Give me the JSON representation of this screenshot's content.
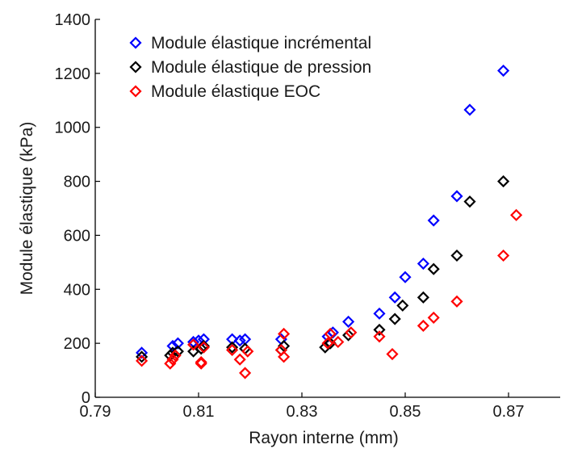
{
  "chart_data": {
    "type": "scatter",
    "xlabel": "Rayon interne (mm)",
    "ylabel": "Module élastique (kPa)",
    "xlim": [
      0.79,
      0.88
    ],
    "ylim": [
      0,
      1400
    ],
    "xticks": [
      "0.79",
      "0.81",
      "0.83",
      "0.85",
      "0.87"
    ],
    "yticks": [
      "0",
      "200",
      "400",
      "600",
      "800",
      "1000",
      "1200",
      "1400"
    ],
    "grid": false,
    "legend_position": "top-left",
    "marker": "diamond-open",
    "series": [
      {
        "name": "Module élastique incrémental",
        "color": "#0000ff",
        "points": [
          {
            "x": 0.799,
            "y": 165
          },
          {
            "x": 0.805,
            "y": 190
          },
          {
            "x": 0.806,
            "y": 200
          },
          {
            "x": 0.809,
            "y": 205
          },
          {
            "x": 0.81,
            "y": 210
          },
          {
            "x": 0.811,
            "y": 215
          },
          {
            "x": 0.8165,
            "y": 215
          },
          {
            "x": 0.818,
            "y": 210
          },
          {
            "x": 0.819,
            "y": 215
          },
          {
            "x": 0.826,
            "y": 215
          },
          {
            "x": 0.835,
            "y": 225
          },
          {
            "x": 0.836,
            "y": 240
          },
          {
            "x": 0.839,
            "y": 280
          },
          {
            "x": 0.845,
            "y": 310
          },
          {
            "x": 0.848,
            "y": 370
          },
          {
            "x": 0.85,
            "y": 445
          },
          {
            "x": 0.8535,
            "y": 495
          },
          {
            "x": 0.8555,
            "y": 655
          },
          {
            "x": 0.86,
            "y": 745
          },
          {
            "x": 0.8625,
            "y": 1065
          },
          {
            "x": 0.869,
            "y": 1210
          }
        ]
      },
      {
        "name": "Module élastique de pression",
        "color": "#000000",
        "points": [
          {
            "x": 0.799,
            "y": 150
          },
          {
            "x": 0.8045,
            "y": 155
          },
          {
            "x": 0.805,
            "y": 165
          },
          {
            "x": 0.806,
            "y": 170
          },
          {
            "x": 0.809,
            "y": 170
          },
          {
            "x": 0.8105,
            "y": 180
          },
          {
            "x": 0.811,
            "y": 190
          },
          {
            "x": 0.8165,
            "y": 185
          },
          {
            "x": 0.819,
            "y": 180
          },
          {
            "x": 0.826,
            "y": 175
          },
          {
            "x": 0.8265,
            "y": 190
          },
          {
            "x": 0.8345,
            "y": 185
          },
          {
            "x": 0.8355,
            "y": 200
          },
          {
            "x": 0.839,
            "y": 230
          },
          {
            "x": 0.845,
            "y": 250
          },
          {
            "x": 0.848,
            "y": 290
          },
          {
            "x": 0.8495,
            "y": 340
          },
          {
            "x": 0.8535,
            "y": 370
          },
          {
            "x": 0.8555,
            "y": 475
          },
          {
            "x": 0.86,
            "y": 525
          },
          {
            "x": 0.8625,
            "y": 725
          },
          {
            "x": 0.869,
            "y": 800
          }
        ]
      },
      {
        "name": "Module élastique EOC",
        "color": "#ff0000",
        "points": [
          {
            "x": 0.799,
            "y": 135
          },
          {
            "x": 0.8045,
            "y": 125
          },
          {
            "x": 0.805,
            "y": 140
          },
          {
            "x": 0.8055,
            "y": 155
          },
          {
            "x": 0.809,
            "y": 195
          },
          {
            "x": 0.8105,
            "y": 125
          },
          {
            "x": 0.8105,
            "y": 130
          },
          {
            "x": 0.811,
            "y": 185
          },
          {
            "x": 0.8165,
            "y": 175
          },
          {
            "x": 0.818,
            "y": 140
          },
          {
            "x": 0.819,
            "y": 90
          },
          {
            "x": 0.8195,
            "y": 170
          },
          {
            "x": 0.826,
            "y": 175
          },
          {
            "x": 0.8265,
            "y": 150
          },
          {
            "x": 0.8265,
            "y": 235
          },
          {
            "x": 0.835,
            "y": 200
          },
          {
            "x": 0.8355,
            "y": 235
          },
          {
            "x": 0.837,
            "y": 205
          },
          {
            "x": 0.8395,
            "y": 240
          },
          {
            "x": 0.845,
            "y": 225
          },
          {
            "x": 0.8475,
            "y": 160
          },
          {
            "x": 0.8535,
            "y": 265
          },
          {
            "x": 0.8555,
            "y": 295
          },
          {
            "x": 0.86,
            "y": 355
          },
          {
            "x": 0.869,
            "y": 525
          },
          {
            "x": 0.8715,
            "y": 675
          }
        ]
      }
    ]
  }
}
